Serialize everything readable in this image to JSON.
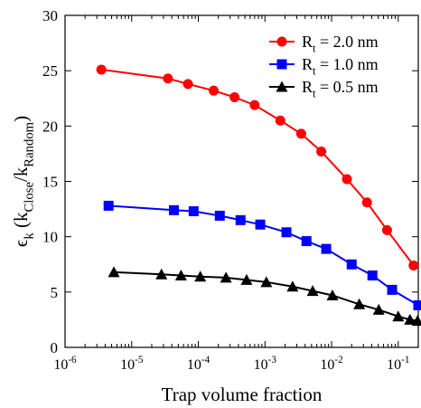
{
  "chart_data": {
    "type": "line",
    "x_label": "Trap volume fraction",
    "y_label": [
      {
        "text": "ϵ"
      },
      {
        "text": "k",
        "sub": true
      },
      {
        "text": " (k"
      },
      {
        "text": "Close",
        "sub": true
      },
      {
        "text": "/k"
      },
      {
        "text": "Random",
        "sub": true
      },
      {
        "text": ")"
      }
    ],
    "x_log": true,
    "xlim": [
      1e-06,
      0.2
    ],
    "ylim": [
      0,
      30
    ],
    "xticks": [
      {
        "value": 1e-06,
        "label": [
          {
            "text": "10"
          },
          {
            "text": "-6",
            "sup": true
          }
        ]
      },
      {
        "value": 1e-05,
        "label": [
          {
            "text": "10"
          },
          {
            "text": "-5",
            "sup": true
          }
        ]
      },
      {
        "value": 0.0001,
        "label": [
          {
            "text": "10"
          },
          {
            "text": "-4",
            "sup": true
          }
        ]
      },
      {
        "value": 0.001,
        "label": [
          {
            "text": "10"
          },
          {
            "text": "-3",
            "sup": true
          }
        ]
      },
      {
        "value": 0.01,
        "label": [
          {
            "text": "10"
          },
          {
            "text": "-2",
            "sup": true
          }
        ]
      },
      {
        "value": 0.1,
        "label": [
          {
            "text": "10"
          },
          {
            "text": "-1",
            "sup": true
          }
        ]
      }
    ],
    "yticks": [
      0,
      5,
      10,
      15,
      20,
      25,
      30
    ],
    "legend": "upper right",
    "series": [
      {
        "name": [
          {
            "text": "R"
          },
          {
            "text": "t",
            "sub": true
          },
          {
            "text": " = 2.0 nm"
          }
        ],
        "color": "#ff0000",
        "marker": "circle",
        "x": [
          3.5e-06,
          3.5e-05,
          7e-05,
          0.00017,
          0.00035,
          0.0007,
          0.0017,
          0.0035,
          0.007,
          0.017,
          0.034,
          0.068,
          0.17
        ],
        "values": [
          25.1,
          24.3,
          23.8,
          23.2,
          22.6,
          21.9,
          20.5,
          19.3,
          17.7,
          15.2,
          13.1,
          10.6,
          7.4
        ]
      },
      {
        "name": [
          {
            "text": "R"
          },
          {
            "text": "t",
            "sub": true
          },
          {
            "text": " = 1.0 nm"
          }
        ],
        "color": "#0000ff",
        "marker": "square",
        "x": [
          4.5e-06,
          4.3e-05,
          8.5e-05,
          0.00021,
          0.00043,
          0.00085,
          0.0021,
          0.0042,
          0.0083,
          0.02,
          0.041,
          0.081,
          0.2
        ],
        "values": [
          12.8,
          12.4,
          12.3,
          11.9,
          11.5,
          11.1,
          10.4,
          9.6,
          8.9,
          7.5,
          6.5,
          5.2,
          3.8
        ]
      },
      {
        "name": [
          {
            "text": "R"
          },
          {
            "text": "t",
            "sub": true
          },
          {
            "text": " = 0.5 nm"
          }
        ],
        "color": "#000000",
        "marker": "triangle",
        "x": [
          5.4e-06,
          2.8e-05,
          5.5e-05,
          0.000107,
          0.00026,
          0.00053,
          0.00105,
          0.0026,
          0.0052,
          0.0103,
          0.026,
          0.051,
          0.1,
          0.15,
          0.195
        ],
        "values": [
          6.8,
          6.6,
          6.5,
          6.4,
          6.3,
          6.1,
          5.9,
          5.5,
          5.1,
          4.7,
          3.9,
          3.4,
          2.8,
          2.5,
          2.4
        ]
      }
    ]
  }
}
